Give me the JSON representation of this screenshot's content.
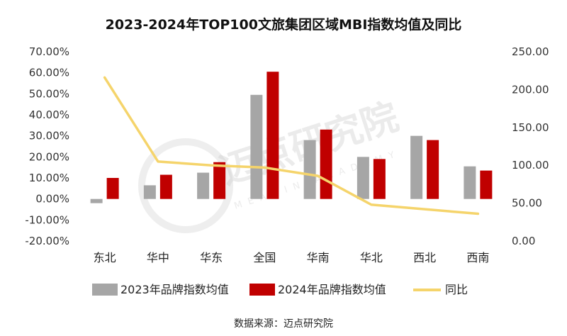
{
  "chart_data": {
    "type": "bar",
    "title": "2023-2024年TOP100文旅集团区域MBI指数均值及同比",
    "categories": [
      "东北",
      "华中",
      "华东",
      "全国",
      "华南",
      "华北",
      "西北",
      "西南"
    ],
    "series": [
      {
        "name": "2023年品牌指数均值",
        "kind": "bar",
        "axis": "left",
        "color": "#a6a6a6",
        "values": [
          -2.0,
          6.5,
          12.5,
          49.5,
          28.0,
          20.0,
          30.0,
          15.5
        ]
      },
      {
        "name": "2024年品牌指数均值",
        "kind": "bar",
        "axis": "left",
        "color": "#c00000",
        "values": [
          10.0,
          11.5,
          17.5,
          60.5,
          33.0,
          19.0,
          28.0,
          13.5
        ]
      },
      {
        "name": "同比",
        "kind": "line",
        "axis": "right",
        "color": "#f5d46b",
        "values": [
          216,
          105,
          100,
          97,
          86,
          48,
          42,
          36
        ]
      }
    ],
    "left_axis": {
      "min": -20,
      "max": 70,
      "step": 10,
      "tick_labels": [
        "-20.00%",
        "-10.00%",
        "0.00%",
        "10.00%",
        "20.00%",
        "30.00%",
        "40.00%",
        "50.00%",
        "60.00%",
        "70.00%"
      ]
    },
    "right_axis": {
      "min": 0,
      "max": 250,
      "step": 50,
      "tick_labels": [
        "0.00",
        "50.00",
        "100.00",
        "150.00",
        "200.00",
        "250.00"
      ]
    },
    "grid": false,
    "legend_position": "bottom"
  },
  "legend": [
    {
      "label": "2023年品牌指数均值",
      "color": "#a6a6a6",
      "shape": "rect"
    },
    {
      "label": "2024年品牌指数均值",
      "color": "#c00000",
      "shape": "rect"
    },
    {
      "label": "同比",
      "color": "#f5d46b",
      "shape": "line"
    }
  ],
  "source_note": "数据来源：迈点研究院",
  "watermark": {
    "cn": "迈点研究院",
    "en": "MEADIN ACADEMY"
  }
}
